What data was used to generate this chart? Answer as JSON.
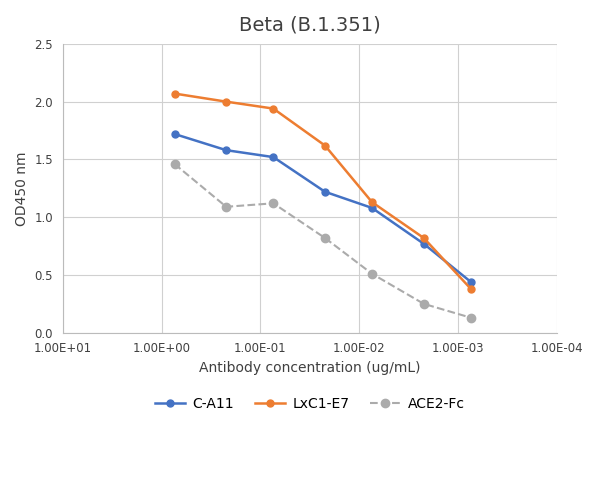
{
  "title": "Beta (B.1.351)",
  "xlabel": "Antibody concentration (ug/mL)",
  "ylabel": "OD450 nm",
  "xlim_left": 10,
  "xlim_right": 0.0001,
  "ylim": [
    0,
    2.5
  ],
  "yticks": [
    0,
    0.5,
    1.0,
    1.5,
    2.0,
    2.5
  ],
  "custom_xticks": [
    10,
    1,
    0.1,
    0.01,
    0.001,
    0.0001
  ],
  "custom_xlabels": [
    "1.00E+01",
    "1.00E+00",
    "1.00E-01",
    "1.00E-02",
    "1.00E-03",
    "1.00E-04"
  ],
  "series": [
    {
      "label": "C-A11",
      "color": "#4472C4",
      "linestyle": "-",
      "marker": "o",
      "markersize": 5,
      "linewidth": 1.8,
      "x": [
        0.74,
        0.222,
        0.074,
        0.0222,
        0.00741,
        0.00222,
        0.000741
      ],
      "y": [
        1.72,
        1.58,
        1.52,
        1.22,
        1.08,
        0.77,
        0.44
      ]
    },
    {
      "label": "LxC1-E7",
      "color": "#ED7D31",
      "linestyle": "-",
      "marker": "o",
      "markersize": 5,
      "linewidth": 1.8,
      "x": [
        0.74,
        0.222,
        0.074,
        0.0222,
        0.00741,
        0.00222,
        0.000741
      ],
      "y": [
        2.07,
        2.0,
        1.94,
        1.62,
        1.13,
        0.82,
        0.38
      ]
    },
    {
      "label": "ACE2-Fc",
      "color": "#ABABAB",
      "linestyle": "--",
      "marker": "o",
      "markersize": 6,
      "linewidth": 1.5,
      "x": [
        0.74,
        0.222,
        0.074,
        0.0222,
        0.00741,
        0.00222,
        0.000741
      ],
      "y": [
        1.46,
        1.09,
        1.12,
        0.82,
        0.51,
        0.25,
        0.13
      ]
    }
  ],
  "background_color": "#ffffff",
  "grid_color": "#d0d0d0",
  "title_fontsize": 14,
  "label_fontsize": 10,
  "tick_fontsize": 8.5,
  "legend_fontsize": 10
}
